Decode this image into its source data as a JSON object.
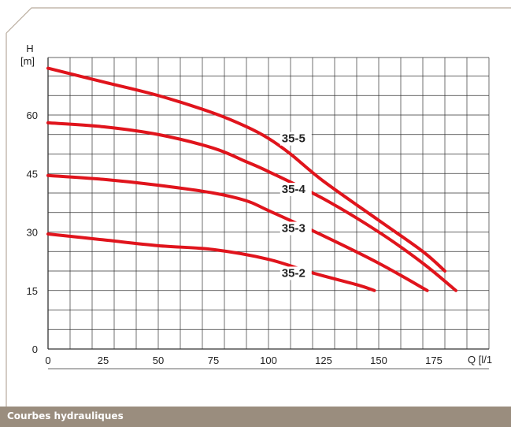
{
  "footer": {
    "title": "Courbes hydrauliques"
  },
  "colors": {
    "curve": "#e0141c",
    "frame": "#b8ab9c",
    "footer": "#9a8d7e"
  },
  "chart_data": {
    "type": "line",
    "title": "",
    "xlabel": "Q [l/1",
    "ylabel_line1": "H",
    "ylabel_line2": "[m]",
    "xlim": [
      0,
      200
    ],
    "ylim": [
      0,
      80
    ],
    "x_ticks": [
      0,
      25,
      50,
      75,
      100,
      125,
      150,
      175
    ],
    "y_ticks": [
      0,
      15,
      30,
      45,
      60
    ],
    "grid": true,
    "series": [
      {
        "name": "35-5",
        "points": [
          [
            0,
            72
          ],
          [
            25,
            68.5
          ],
          [
            50,
            65
          ],
          [
            75,
            60.5
          ],
          [
            90,
            57
          ],
          [
            100,
            54
          ],
          [
            110,
            50
          ],
          [
            125,
            43
          ],
          [
            150,
            33
          ],
          [
            170,
            25
          ],
          [
            180,
            20
          ]
        ]
      },
      {
        "name": "35-4",
        "points": [
          [
            0,
            58
          ],
          [
            25,
            57
          ],
          [
            50,
            55
          ],
          [
            75,
            51.5
          ],
          [
            90,
            48
          ],
          [
            100,
            45.5
          ],
          [
            125,
            38.5
          ],
          [
            150,
            30
          ],
          [
            170,
            22
          ],
          [
            185,
            15
          ]
        ]
      },
      {
        "name": "35-3",
        "points": [
          [
            0,
            44.5
          ],
          [
            25,
            43.5
          ],
          [
            50,
            42
          ],
          [
            75,
            40
          ],
          [
            90,
            38
          ],
          [
            100,
            35.5
          ],
          [
            125,
            29
          ],
          [
            150,
            22
          ],
          [
            172,
            15
          ]
        ]
      },
      {
        "name": "35-2",
        "points": [
          [
            0,
            29.5
          ],
          [
            25,
            28
          ],
          [
            50,
            26.5
          ],
          [
            75,
            25.5
          ],
          [
            100,
            23
          ],
          [
            120,
            19.5
          ],
          [
            140,
            16.5
          ],
          [
            148,
            15
          ]
        ]
      }
    ]
  }
}
